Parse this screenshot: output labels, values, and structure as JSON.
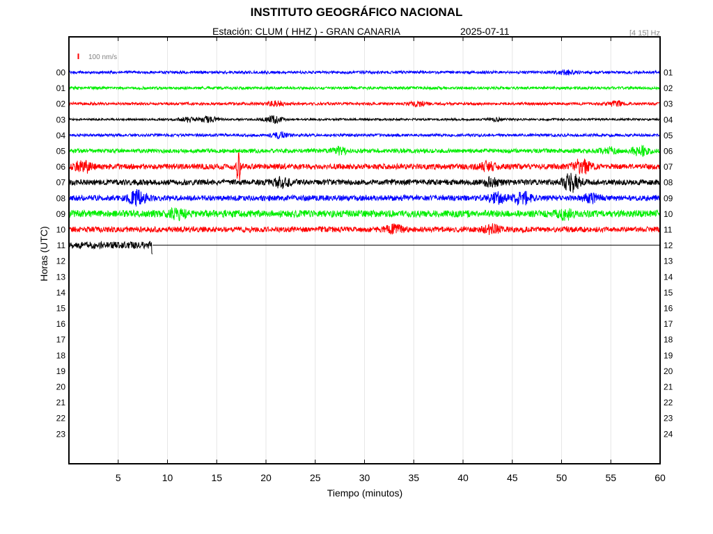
{
  "header": {
    "title": "INSTITUTO GEOGRÁFICO NACIONAL",
    "station_label": "Estación:  CLUM ( HHZ ) - GRAN CANARIA",
    "date": "2025-07-11",
    "filter": "[4 15] Hz"
  },
  "chart_data": {
    "type": "line",
    "title": "INSTITUTO GEOGRÁFICO NACIONAL",
    "xlabel": "Tiempo (minutos)",
    "ylabel": "Horas (UTC)",
    "xlim": [
      0,
      60
    ],
    "x_ticks": [
      "5",
      "10",
      "15",
      "20",
      "25",
      "30",
      "35",
      "40",
      "45",
      "50",
      "55",
      "60"
    ],
    "y_ticks_left": [
      "00",
      "01",
      "02",
      "03",
      "04",
      "05",
      "06",
      "07",
      "08",
      "09",
      "10",
      "11",
      "12",
      "13",
      "14",
      "15",
      "16",
      "17",
      "18",
      "19",
      "20",
      "21",
      "22",
      "23"
    ],
    "y_ticks_right": [
      "01",
      "02",
      "03",
      "04",
      "05",
      "06",
      "07",
      "08",
      "09",
      "10",
      "11",
      "12",
      "13",
      "14",
      "15",
      "16",
      "17",
      "18",
      "19",
      "20",
      "21",
      "22",
      "23",
      "24"
    ],
    "scale_label": "100 nm/s",
    "grid": "vertical",
    "trace_colors": [
      "#0000ff",
      "#00ee00",
      "#ff0000",
      "#000000"
    ],
    "series": [
      {
        "hour": "00",
        "color": "#0000ff",
        "end_min": 60,
        "amp": 2,
        "events": [
          {
            "t": 50.5,
            "amp": 3
          }
        ]
      },
      {
        "hour": "01",
        "color": "#00ee00",
        "end_min": 60,
        "amp": 2,
        "events": []
      },
      {
        "hour": "02",
        "color": "#ff0000",
        "end_min": 60,
        "amp": 2,
        "events": [
          {
            "t": 21,
            "amp": 3
          },
          {
            "t": 35.5,
            "amp": 3
          },
          {
            "t": 55.5,
            "amp": 3
          }
        ]
      },
      {
        "hour": "03",
        "color": "#000000",
        "end_min": 60,
        "amp": 1.5,
        "events": [
          {
            "t": 12,
            "amp": 3
          },
          {
            "t": 14.2,
            "amp": 4
          },
          {
            "t": 20.8,
            "amp": 5
          },
          {
            "t": 43.5,
            "amp": 2
          }
        ]
      },
      {
        "hour": "04",
        "color": "#0000ff",
        "end_min": 60,
        "amp": 2,
        "events": [
          {
            "t": 21.5,
            "amp": 4
          }
        ]
      },
      {
        "hour": "05",
        "color": "#00ee00",
        "end_min": 60,
        "amp": 3,
        "events": [
          {
            "t": 27.5,
            "amp": 4
          },
          {
            "t": 54.8,
            "amp": 4
          },
          {
            "t": 58,
            "amp": 7
          }
        ]
      },
      {
        "hour": "06",
        "color": "#ff0000",
        "end_min": 60,
        "amp": 4,
        "events": [
          {
            "t": 1.5,
            "amp": 8
          },
          {
            "t": 17.2,
            "amp": 30
          },
          {
            "t": 42.5,
            "amp": 5
          },
          {
            "t": 52,
            "amp": 10
          }
        ]
      },
      {
        "hour": "07",
        "color": "#000000",
        "end_min": 60,
        "amp": 4,
        "events": [
          {
            "t": 21.5,
            "amp": 6
          },
          {
            "t": 43,
            "amp": 5
          },
          {
            "t": 51,
            "amp": 12
          }
        ]
      },
      {
        "hour": "08",
        "color": "#0000ff",
        "end_min": 60,
        "amp": 4,
        "events": [
          {
            "t": 7,
            "amp": 10
          },
          {
            "t": 43.5,
            "amp": 6
          },
          {
            "t": 46,
            "amp": 9
          },
          {
            "t": 53,
            "amp": 5
          }
        ]
      },
      {
        "hour": "09",
        "color": "#00ee00",
        "end_min": 60,
        "amp": 5,
        "events": [
          {
            "t": 11,
            "amp": 6
          },
          {
            "t": 50.5,
            "amp": 6
          }
        ]
      },
      {
        "hour": "10",
        "color": "#ff0000",
        "end_min": 60,
        "amp": 4,
        "events": [
          {
            "t": 33,
            "amp": 5
          },
          {
            "t": 43,
            "amp": 5
          }
        ]
      },
      {
        "hour": "11",
        "color": "#000000",
        "end_min": 8.5,
        "amp": 5,
        "events": [
          {
            "t": 8.5,
            "amp": 18
          }
        ]
      }
    ]
  }
}
